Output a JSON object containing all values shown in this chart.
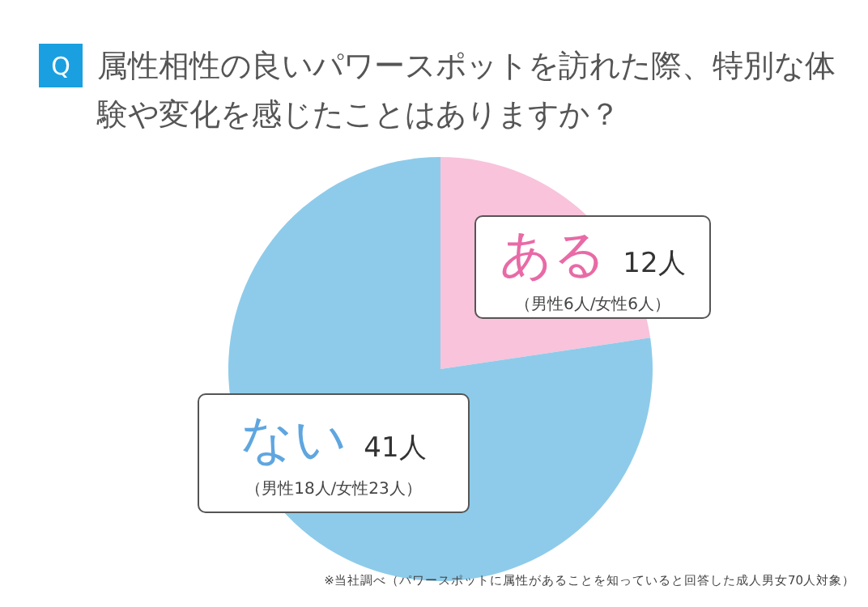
{
  "chart_data": {
    "type": "pie",
    "title": "属性相性の良いパワースポットを訪れた際、特別な体験や変化を感じたことはありますか？",
    "categories": [
      "ある",
      "ない"
    ],
    "values": [
      12,
      41
    ],
    "colors": [
      "#f8c3db",
      "#8ecbea"
    ],
    "value_labels": [
      "12人",
      "41人"
    ],
    "annotations": [
      "Q",
      {
        "text": "（男性6人/女性6人）",
        "x": "ある"
      },
      {
        "text": "（男性18人/女性23人）",
        "x": "ない"
      },
      "※当社調べ（パワースポットに属性があることを知っていると回答した成人男女70人対象）"
    ]
  }
}
